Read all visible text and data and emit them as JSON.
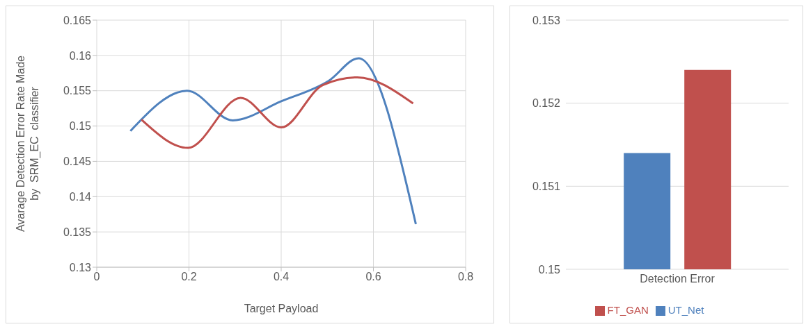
{
  "chart_data": [
    {
      "type": "line",
      "xlabel": "Target Payload",
      "ylabel": "Avarage Detection Error Rate Made\nby  SRM_EC  classifier",
      "xlim": [
        0,
        0.8
      ],
      "xticks": [
        0,
        0.2,
        0.4,
        0.6,
        0.8
      ],
      "ylim": [
        0.13,
        0.165
      ],
      "yticks": [
        0.13,
        0.135,
        0.14,
        0.145,
        0.15,
        0.155,
        0.16,
        0.165
      ],
      "grid": true,
      "legend": false,
      "marker": "none",
      "line_style": "solid",
      "series": [
        {
          "color": "#4f81bd",
          "x": [
            0.073,
            0.196,
            0.295,
            0.4,
            0.503,
            0.568,
            0.692
          ],
          "values": [
            0.1493,
            0.155,
            0.1508,
            0.1535,
            0.1564,
            0.1596,
            0.1361
          ]
        },
        {
          "color": "#c0504d",
          "x": [
            0.097,
            0.198,
            0.312,
            0.4,
            0.49,
            0.565,
            0.686
          ],
          "values": [
            0.1509,
            0.1469,
            0.154,
            0.1498,
            0.1558,
            0.1569,
            0.1532
          ]
        }
      ]
    },
    {
      "type": "bar",
      "categories": [
        "Detection Error"
      ],
      "ylim": [
        0.15,
        0.153
      ],
      "yticks": [
        0.15,
        0.151,
        0.152,
        0.153
      ],
      "grid": "y",
      "legend": "bottom",
      "series": [
        {
          "name": "UT_Net",
          "color": "#4f81bd",
          "values": [
            0.1514
          ]
        },
        {
          "name": "FT_GAN",
          "color": "#c0504d",
          "values": [
            0.1524
          ]
        }
      ]
    }
  ]
}
